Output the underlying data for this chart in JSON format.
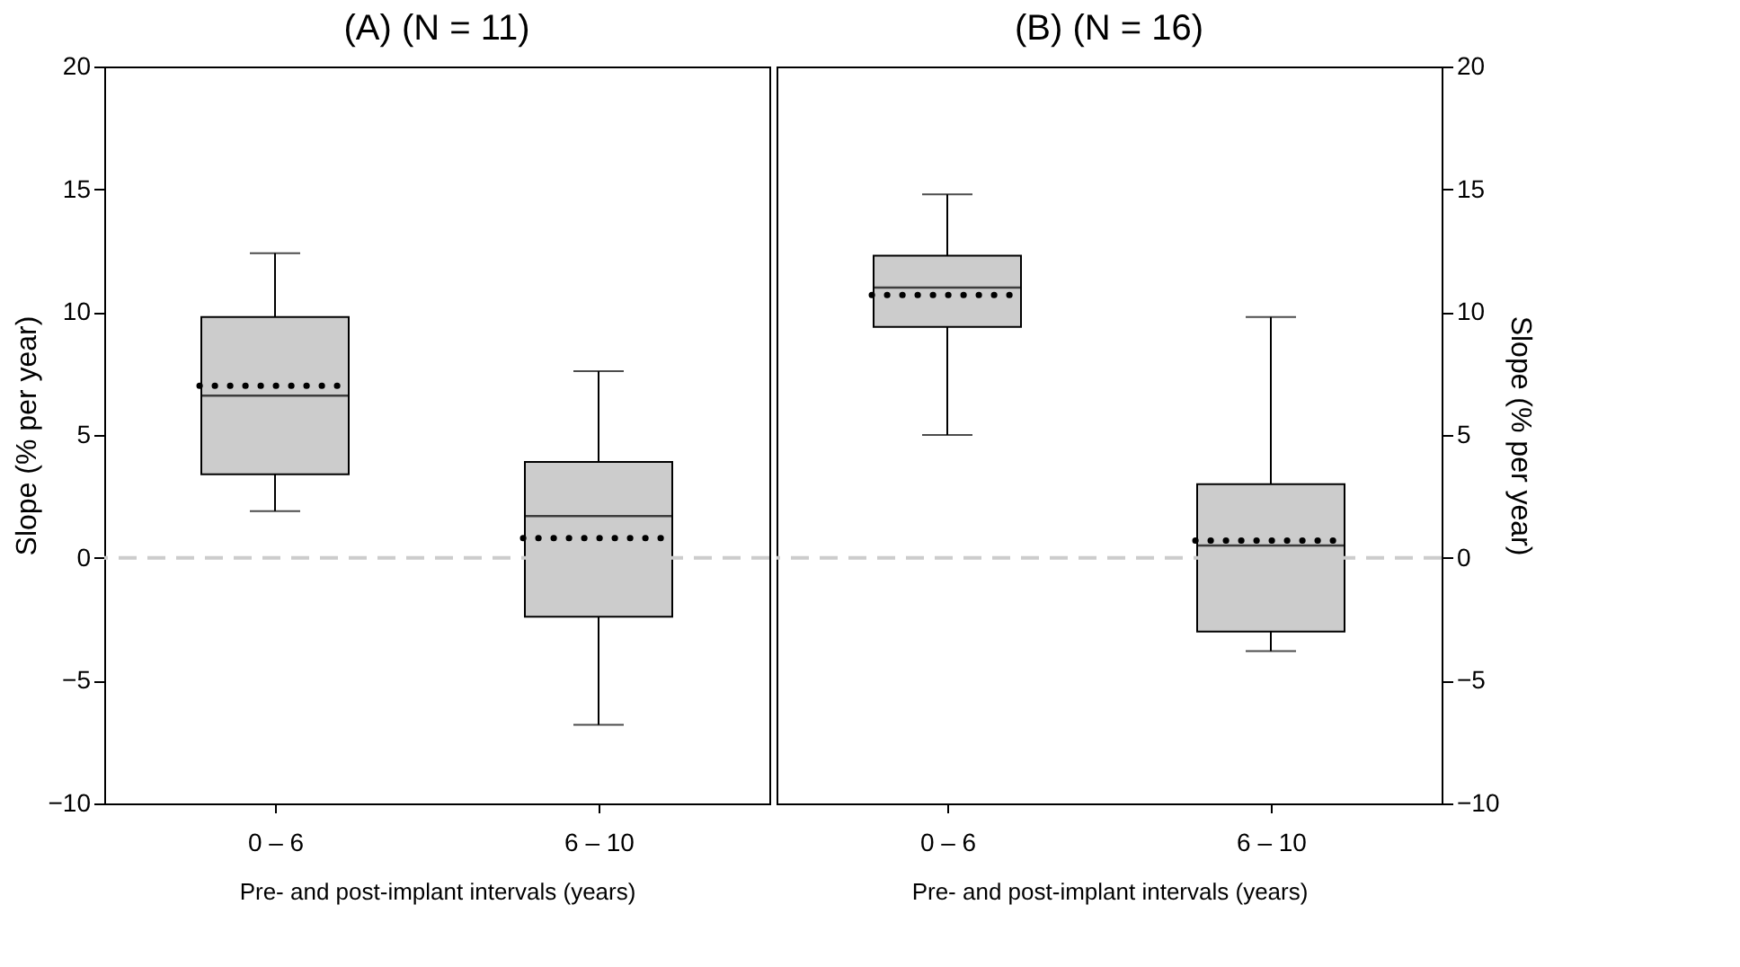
{
  "chart_data": [
    {
      "type": "box",
      "title": "(A) (N = 11)",
      "xlabel": "Pre- and post-implant intervals (years)",
      "ylabel": "Slope (% per year)",
      "categories": [
        "0 – 6",
        "6 – 10"
      ],
      "ylim": [
        -10,
        20
      ],
      "yticks": [
        {
          "value": -10,
          "label": "−10"
        },
        {
          "value": -5,
          "label": "−5"
        },
        0,
        5,
        10,
        15,
        20
      ],
      "grid": false,
      "series": [
        {
          "color": "#cccccc",
          "boxes": [
            {
              "low": 1.9,
              "q1": 3.4,
              "median": 6.6,
              "q3": 9.8,
              "high": 12.4,
              "mean": 7.0
            },
            {
              "low": -6.8,
              "q1": -2.4,
              "median": 1.7,
              "q3": 3.9,
              "high": 7.6,
              "mean": 0.8
            }
          ]
        }
      ],
      "ref_lines": [
        {
          "axis": "y",
          "value": 0,
          "color": "#cccccc",
          "line_style": "dashed"
        }
      ]
    },
    {
      "type": "box",
      "title": "(B) (N = 16)",
      "xlabel": "Pre- and post-implant intervals (years)",
      "y2label": "Slope (% per year)",
      "categories": [
        "0 – 6",
        "6 – 10"
      ],
      "y2lim": [
        -10,
        20
      ],
      "y2ticks": [
        {
          "value": -10,
          "label": "−10"
        },
        {
          "value": -5,
          "label": "−5"
        },
        0,
        5,
        10,
        15,
        20
      ],
      "grid": false,
      "series": [
        {
          "color": "#cccccc",
          "axis": "y2",
          "boxes": [
            {
              "low": 5.0,
              "q1": 9.4,
              "median": 11.0,
              "q3": 12.3,
              "high": 14.8,
              "mean": 10.7
            },
            {
              "low": -3.8,
              "q1": -3.0,
              "median": 0.5,
              "q3": 3.0,
              "high": 9.8,
              "mean": 0.7
            }
          ]
        }
      ],
      "ref_lines": [
        {
          "axis": "y2",
          "value": 0,
          "color": "#cccccc",
          "line_style": "dashed"
        }
      ]
    }
  ]
}
